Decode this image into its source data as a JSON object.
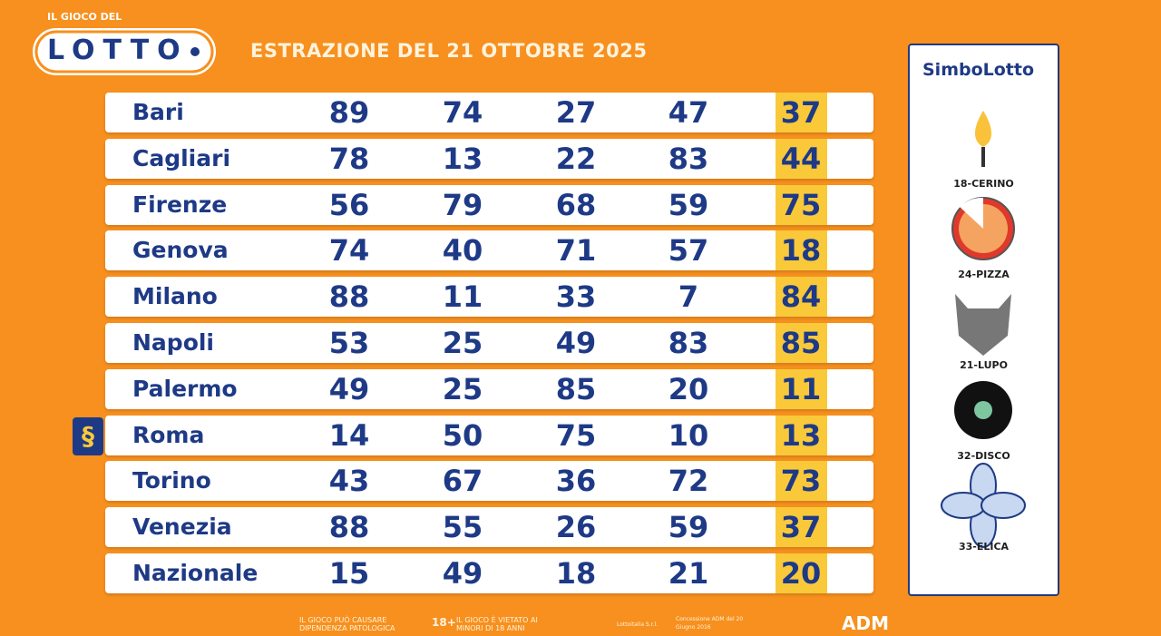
{
  "header": {
    "logo_top": "IL GIOCO DEL",
    "logo": "LOTTO",
    "title": "ESTRAZIONE DEL 21 OTTOBRE 2025"
  },
  "table": {
    "rows": [
      [
        "Bari",
        89,
        74,
        27,
        47,
        37
      ],
      [
        "Cagliari",
        78,
        13,
        22,
        83,
        44
      ],
      [
        "Firenze",
        56,
        79,
        68,
        59,
        75
      ],
      [
        "Genova",
        74,
        40,
        71,
        57,
        18
      ],
      [
        "Milano",
        88,
        11,
        33,
        7,
        84
      ],
      [
        "Napoli",
        53,
        25,
        49,
        83,
        85
      ],
      [
        "Palermo",
        49,
        25,
        85,
        20,
        11
      ],
      [
        "Roma",
        14,
        50,
        75,
        10,
        13
      ],
      [
        "Torino",
        43,
        67,
        36,
        72,
        73
      ],
      [
        "Venezia",
        88,
        55,
        26,
        59,
        37
      ],
      [
        "Nazionale",
        15,
        49,
        18,
        21,
        20
      ]
    ]
  },
  "simbolotto": {
    "title": "SimboLotto",
    "items": [
      "18-CERINO",
      "24-PIZZA",
      "21-LUPO",
      "32-DISCO",
      "33-ELICA"
    ]
  },
  "footer": {
    "warning": "IL GIOCO PUÒ CAUSARE DIPENDENZA PATOLOGICA",
    "age": "18+",
    "minors": "IL GIOCO È VIETATO AI MINORI DI 18 ANNI",
    "company": "Lottoitalia S.r.l.",
    "concession": "Concessione ADM del 20 Giugno 2016",
    "adm": "ADM"
  }
}
